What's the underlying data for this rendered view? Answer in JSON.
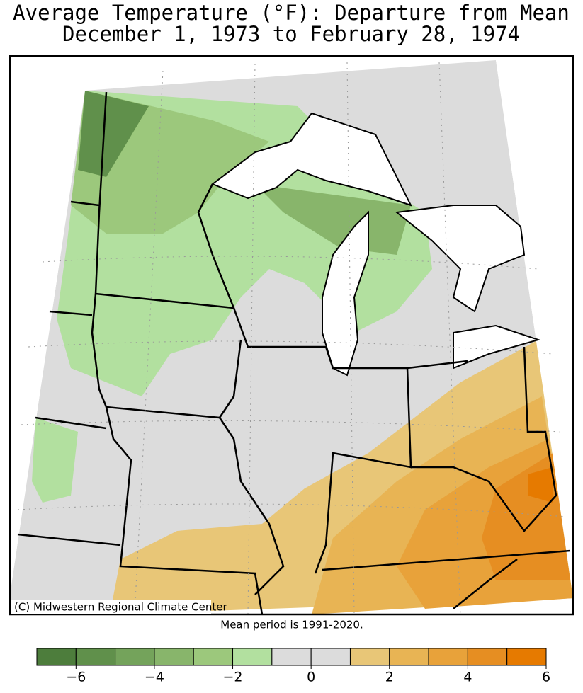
{
  "title": [
    "Average Temperature (°F): Departure from Mean",
    "December 1, 1973 to February 28, 1974"
  ],
  "credit": "(C) Midwestern Regional Climate Center",
  "note": "Mean period is 1991-2020.",
  "colorbar": {
    "bins": [
      -7,
      -6,
      -5,
      -4,
      -3,
      -2,
      -1,
      0,
      1,
      2,
      3,
      4,
      5,
      6
    ],
    "colors": [
      "#4d7d3c",
      "#60904b",
      "#74a35b",
      "#88b56b",
      "#9cc87c",
      "#b2e09f",
      "#dcdcdc",
      "#dcdcdc",
      "#e8c677",
      "#e8b454",
      "#e8a23a",
      "#e68e22",
      "#e67a00"
    ],
    "ticks": [
      {
        "value": -6,
        "label": "−6"
      },
      {
        "value": -4,
        "label": "−4"
      },
      {
        "value": -2,
        "label": "−2"
      },
      0,
      2,
      4,
      6
    ]
  }
}
